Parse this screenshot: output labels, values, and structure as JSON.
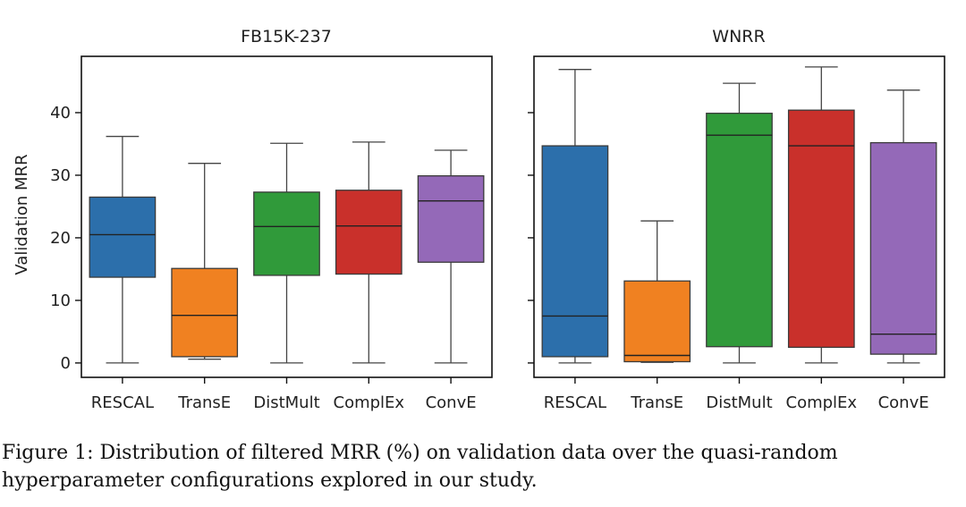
{
  "caption": "Figure 1: Distribution of filtered MRR (%) on validation data over the quasi-random hyperparameter configurations explored in our study.",
  "colors": {
    "RESCAL": "#2c6fab",
    "TransE": "#f08121",
    "DistMult": "#309a3a",
    "ComplEx": "#c9302b",
    "ConvE": "#9469b8",
    "median_line": "#222222",
    "whisker_line": "#444444"
  },
  "chart_data": [
    {
      "type": "box",
      "title": "FB15K-237",
      "xlabel": "",
      "ylabel": "Validation MRR",
      "ylim": [
        -2.3,
        49
      ],
      "yticks": [
        "0",
        "10",
        "20",
        "30",
        "40"
      ],
      "yticks_values": [
        0,
        10,
        20,
        30,
        40
      ],
      "categories": [
        "RESCAL",
        "TransE",
        "DistMult",
        "ComplEx",
        "ConvE"
      ],
      "boxes": [
        {
          "min": 0,
          "q1": 13.7,
          "median": 20.5,
          "q3": 26.5,
          "max": 36.2
        },
        {
          "min": 0.6,
          "q1": 1.0,
          "median": 7.6,
          "q3": 15.1,
          "max": 31.9
        },
        {
          "min": 0,
          "q1": 14.0,
          "median": 21.8,
          "q3": 27.3,
          "max": 35.1
        },
        {
          "min": 0,
          "q1": 14.2,
          "median": 21.9,
          "q3": 27.6,
          "max": 35.3
        },
        {
          "min": 0,
          "q1": 16.1,
          "median": 25.9,
          "q3": 29.9,
          "max": 34.0
        }
      ]
    },
    {
      "type": "box",
      "title": "WNRR",
      "xlabel": "",
      "ylabel": "",
      "ylim": [
        -2.3,
        49
      ],
      "yticks": [],
      "yticks_values": [
        0,
        10,
        20,
        30,
        40
      ],
      "categories": [
        "RESCAL",
        "TransE",
        "DistMult",
        "ComplEx",
        "ConvE"
      ],
      "boxes": [
        {
          "min": 0,
          "q1": 1.0,
          "median": 7.5,
          "q3": 34.7,
          "max": 46.9
        },
        {
          "min": 0.1,
          "q1": 0.2,
          "median": 1.2,
          "q3": 13.1,
          "max": 22.7
        },
        {
          "min": 0,
          "q1": 2.6,
          "median": 36.4,
          "q3": 39.9,
          "max": 44.7
        },
        {
          "min": 0,
          "q1": 2.5,
          "median": 34.7,
          "q3": 40.4,
          "max": 47.3
        },
        {
          "min": 0,
          "q1": 1.4,
          "median": 4.6,
          "q3": 35.2,
          "max": 43.6
        }
      ]
    }
  ]
}
